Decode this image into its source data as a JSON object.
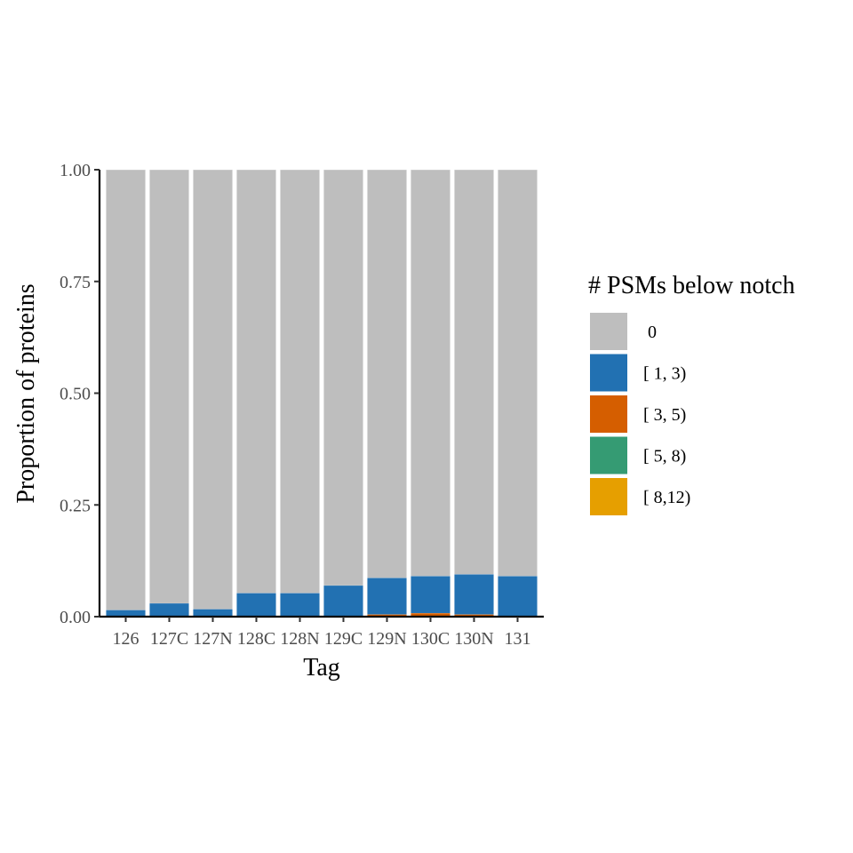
{
  "chart_data": {
    "type": "bar",
    "stacked": true,
    "categories": [
      "126",
      "127C",
      "127N",
      "128C",
      "128N",
      "129C",
      "129N",
      "130C",
      "130N",
      "131"
    ],
    "xlabel": "Tag",
    "ylabel": "Proportion of proteins",
    "ylim": [
      0,
      1
    ],
    "yticks": [
      "0.00",
      "0.25",
      "0.50",
      "0.75",
      "1.00"
    ],
    "grid": false,
    "legend": {
      "title": "# PSMs below notch",
      "position": "right"
    },
    "series": [
      {
        "name": "[ 8,12)",
        "color": "#E69F00",
        "values": [
          0,
          0,
          0,
          0,
          0,
          0,
          0.001,
          0.002,
          0.001,
          0
        ]
      },
      {
        "name": "[ 5, 8)",
        "color": "#359B73",
        "values": [
          0,
          0,
          0,
          0,
          0,
          0,
          0,
          0,
          0,
          0
        ]
      },
      {
        "name": "[ 3, 5)",
        "color": "#D55E00",
        "values": [
          0,
          0.001,
          0,
          0.001,
          0.001,
          0.002,
          0.004,
          0.006,
          0.004,
          0.002
        ]
      },
      {
        "name": "[ 1, 3)",
        "color": "#2271B2",
        "values": [
          0.015,
          0.029,
          0.017,
          0.052,
          0.052,
          0.068,
          0.082,
          0.083,
          0.09,
          0.089
        ]
      },
      {
        "name": "0",
        "color": "#BEBEBE",
        "values": [
          0.985,
          0.97,
          0.983,
          0.947,
          0.947,
          0.93,
          0.913,
          0.909,
          0.905,
          0.909
        ]
      }
    ],
    "legend_order": [
      "0",
      "[ 1, 3)",
      "[ 3, 5)",
      "[ 5, 8)",
      "[ 8,12)"
    ]
  }
}
